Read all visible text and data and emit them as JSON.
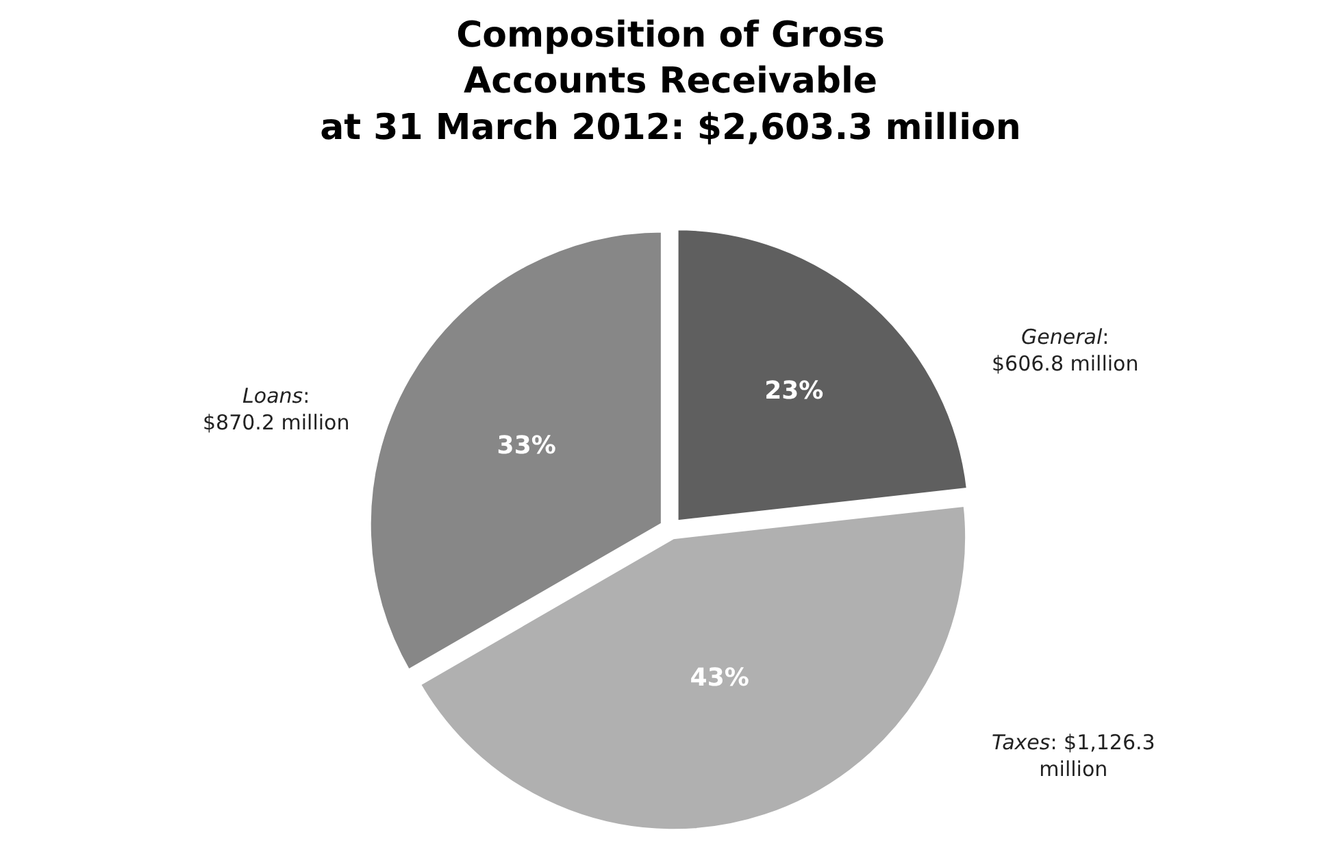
{
  "chart_data": {
    "type": "pie",
    "title": "Composition of Gross\nAccounts Receivable\nat 31 March 2012: $2,603.3 million",
    "categories": [
      "General",
      "Taxes",
      "Loans"
    ],
    "values": [
      23,
      43,
      33
    ],
    "colors": [
      "#5f5f5f",
      "#b0b0b0",
      "#878787"
    ],
    "value_labels": [
      "23%",
      "43%",
      "33%"
    ],
    "annotations": [
      ":\n$606.8 million",
      ": $1,126.3\nmillion",
      ":\n$870.2 million"
    ],
    "legend": false
  }
}
